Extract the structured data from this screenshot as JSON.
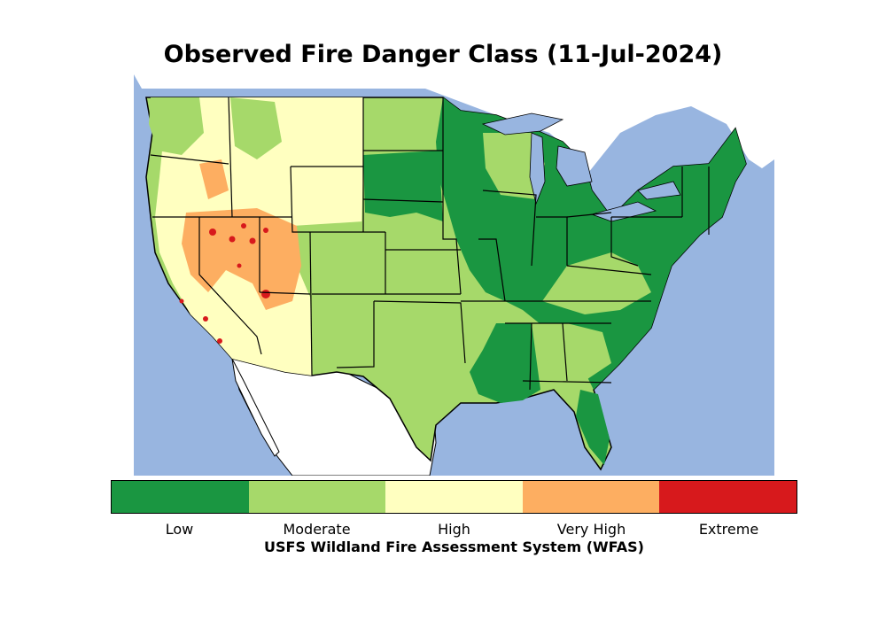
{
  "title": "Observed Fire Danger Class (11-Jul-2024)",
  "colorbar": {
    "classes": [
      {
        "label": "Low",
        "color": "#1a9641"
      },
      {
        "label": "Moderate",
        "color": "#a6d96a"
      },
      {
        "label": "High",
        "color": "#ffffc0"
      },
      {
        "label": "Very High",
        "color": "#fdae61"
      },
      {
        "label": "Extreme",
        "color": "#d7191c"
      }
    ],
    "caption": "USFS Wildland Fire Assessment System (WFAS)"
  },
  "map": {
    "water_color": "#98b5e0",
    "land_color": "#ffffff",
    "border_color": "#000000"
  }
}
